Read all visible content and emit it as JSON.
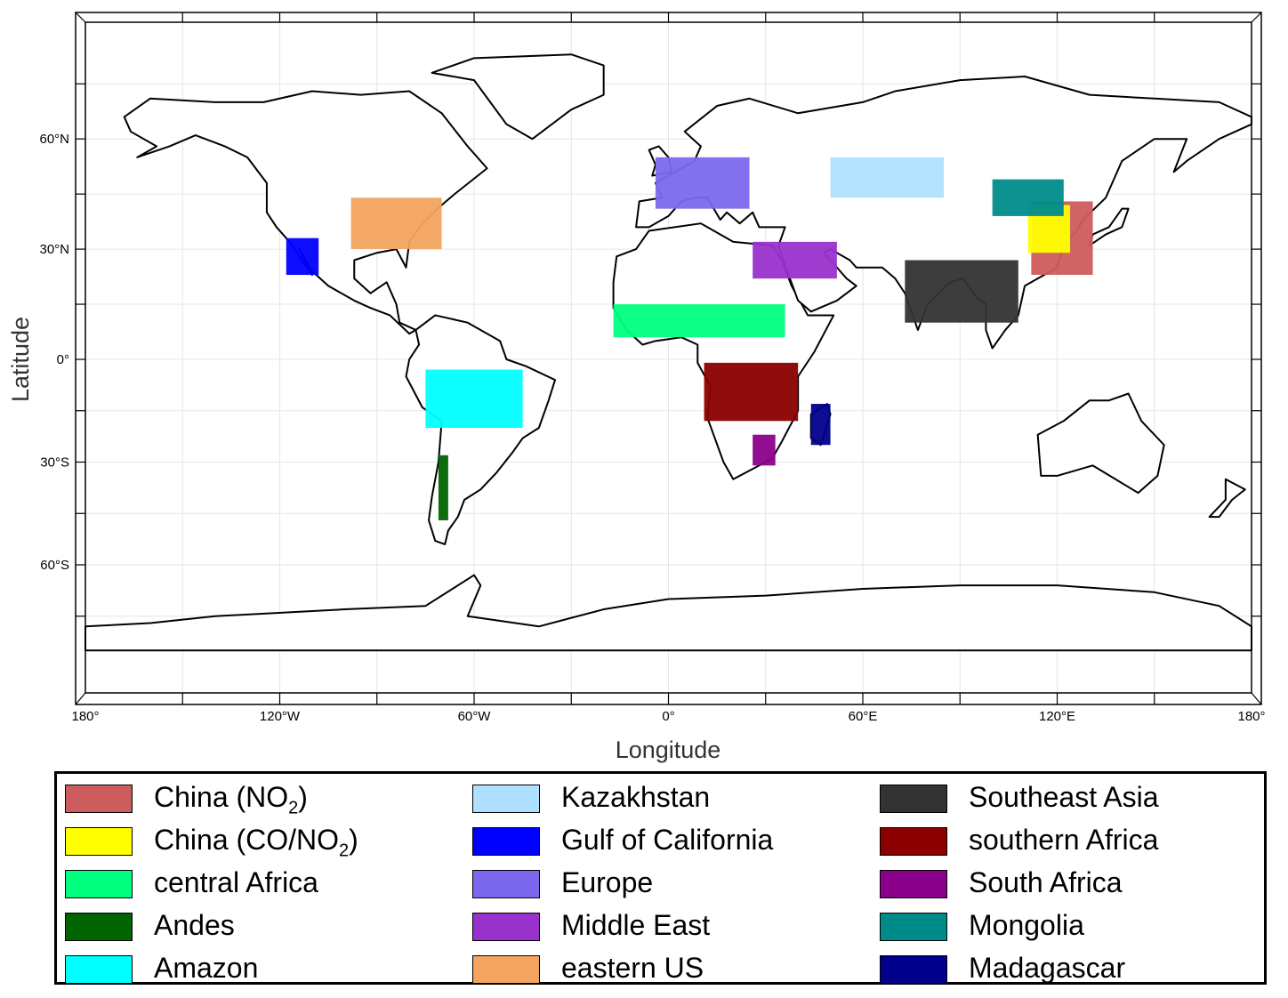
{
  "map": {
    "lon_ticks": [
      "180°",
      "120°W",
      "60°W",
      "0°",
      "60°E",
      "120°E",
      "180°"
    ],
    "lat_ticks": [
      "60°N",
      "30°N",
      "0°",
      "30°S",
      "60°S"
    ],
    "xlabel": "Longitude",
    "ylabel": "Latitude",
    "land_fill": "#ffffff",
    "coast_color": "#000000",
    "grid": true
  },
  "regions": [
    {
      "name": "China (NO",
      "sub": "2",
      "suffix": ")",
      "color": "#cd5c5c",
      "lon": [
        112,
        131
      ],
      "lat": [
        23,
        43
      ]
    },
    {
      "name": "China (CO/NO",
      "sub": "2",
      "suffix": ")",
      "color": "#ffff00",
      "lon": [
        111,
        124
      ],
      "lat": [
        29,
        42
      ]
    },
    {
      "name": "central Africa",
      "color": "#00ff7f",
      "lon": [
        -17,
        36
      ],
      "lat": [
        6,
        15
      ]
    },
    {
      "name": "Andes",
      "color": "#006400",
      "lon": [
        -71,
        -68
      ],
      "lat": [
        -47,
        -28
      ]
    },
    {
      "name": "Amazon",
      "color": "#00ffff",
      "lon": [
        -75,
        -45
      ],
      "lat": [
        -20,
        -3
      ]
    },
    {
      "name": "Kazakhstan",
      "color": "#b0e0ff",
      "lon": [
        50,
        85
      ],
      "lat": [
        44,
        55
      ]
    },
    {
      "name": "Gulf of California",
      "color": "#0000ff",
      "lon": [
        -118,
        -108
      ],
      "lat": [
        23,
        33
      ]
    },
    {
      "name": "Europe",
      "color": "#7b68ee",
      "lon": [
        -4,
        25
      ],
      "lat": [
        41,
        55
      ]
    },
    {
      "name": "Middle East",
      "color": "#9932cc",
      "lon": [
        26,
        52
      ],
      "lat": [
        22,
        32
      ]
    },
    {
      "name": "eastern US",
      "color": "#f4a460",
      "lon": [
        -98,
        -70
      ],
      "lat": [
        30,
        44
      ]
    },
    {
      "name": "Southeast Asia",
      "color": "#333333",
      "lon": [
        73,
        108
      ],
      "lat": [
        10,
        27
      ]
    },
    {
      "name": "southern Africa",
      "color": "#8b0000",
      "lon": [
        11,
        40
      ],
      "lat": [
        -18,
        -1
      ]
    },
    {
      "name": "South Africa",
      "color": "#8b008b",
      "lon": [
        26,
        33
      ],
      "lat": [
        -31,
        -22
      ]
    },
    {
      "name": "Mongolia",
      "color": "#008b8b",
      "lon": [
        100,
        122
      ],
      "lat": [
        39,
        49
      ]
    },
    {
      "name": "Madagascar",
      "color": "#00008b",
      "lon": [
        44,
        50
      ],
      "lat": [
        -25,
        -13
      ]
    }
  ]
}
